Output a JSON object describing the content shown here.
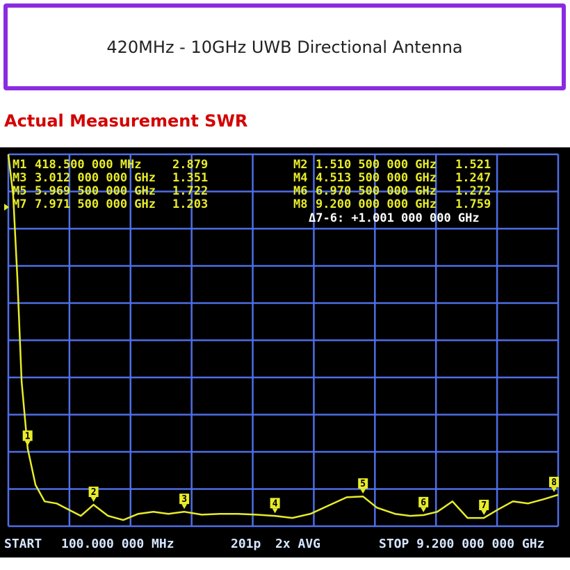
{
  "header": {
    "title": "420MHz - 10GHz UWB Directional Antenna",
    "subtitle": "Actual Measurement SWR"
  },
  "colors": {
    "title_border": "#8a2be2",
    "subtitle": "#d40000",
    "screen_bg": "#000000",
    "grid": "#4f6ee6",
    "trace": "#e8ec2a",
    "marker_text": "#e8ec2a",
    "status_text": "#d6e6ff"
  },
  "markers_left": [
    {
      "label": "M1",
      "freq": "418.500 000 MHz",
      "swr": "2.879",
      "active": false
    },
    {
      "label": "M3",
      "freq": "3.012 000 000 GHz",
      "swr": "1.351",
      "active": false
    },
    {
      "label": "M5",
      "freq": "5.969 500 000 GHz",
      "swr": "1.722",
      "active": false
    },
    {
      "label": "M7",
      "freq": "7.971 500 000 GHz",
      "swr": "1.203",
      "active": true
    }
  ],
  "markers_right": [
    {
      "label": "M2",
      "freq": "1.510 500 000 GHz",
      "swr": "1.521"
    },
    {
      "label": "M4",
      "freq": "4.513 500 000 GHz",
      "swr": "1.247"
    },
    {
      "label": "M6",
      "freq": "6.970 500 000 GHz",
      "swr": "1.272"
    },
    {
      "label": "M8",
      "freq": "9.200 000 000 GHz",
      "swr": "1.759"
    }
  ],
  "delta_readout": "Δ7-6: +1.001 000 000 GHz",
  "status": {
    "start": "START",
    "start_freq": "100.000 000 MHz",
    "points": "201p",
    "avg": "2x AVG",
    "stop": "STOP 9.200 000 000 GHz"
  },
  "chart_data": {
    "type": "line",
    "series_color": "#e8ec2a",
    "xlim": [
      0.1,
      9.2
    ],
    "ylim": [
      1,
      10
    ],
    "grid": true,
    "grid_divisions_x": 9,
    "grid_divisions_y": 10,
    "markers": [
      {
        "id": "1",
        "x": 0.4185,
        "y": 2.879
      },
      {
        "id": "2",
        "x": 1.5105,
        "y": 1.521
      },
      {
        "id": "3",
        "x": 3.012,
        "y": 1.351
      },
      {
        "id": "4",
        "x": 4.5135,
        "y": 1.247
      },
      {
        "id": "5",
        "x": 5.9695,
        "y": 1.722
      },
      {
        "id": "6",
        "x": 6.9705,
        "y": 1.272
      },
      {
        "id": "7",
        "x": 7.9715,
        "y": 1.203
      },
      {
        "id": "8",
        "x": 9.2,
        "y": 1.759
      }
    ],
    "x": [
      0.1,
      0.18,
      0.25,
      0.32,
      0.42,
      0.55,
      0.7,
      0.9,
      1.1,
      1.3,
      1.51,
      1.75,
      2.0,
      2.25,
      2.5,
      2.75,
      3.01,
      3.3,
      3.6,
      3.9,
      4.2,
      4.51,
      4.8,
      5.1,
      5.4,
      5.7,
      5.97,
      6.2,
      6.5,
      6.75,
      6.97,
      7.2,
      7.45,
      7.7,
      7.97,
      8.2,
      8.45,
      8.7,
      8.95,
      9.2
    ],
    "y": [
      10.0,
      9.0,
      7.0,
      4.5,
      2.88,
      2.0,
      1.6,
      1.55,
      1.4,
      1.25,
      1.52,
      1.25,
      1.15,
      1.3,
      1.35,
      1.3,
      1.35,
      1.28,
      1.3,
      1.3,
      1.28,
      1.25,
      1.2,
      1.3,
      1.5,
      1.7,
      1.72,
      1.45,
      1.3,
      1.25,
      1.27,
      1.35,
      1.6,
      1.2,
      1.2,
      1.4,
      1.6,
      1.55,
      1.65,
      1.76
    ]
  }
}
